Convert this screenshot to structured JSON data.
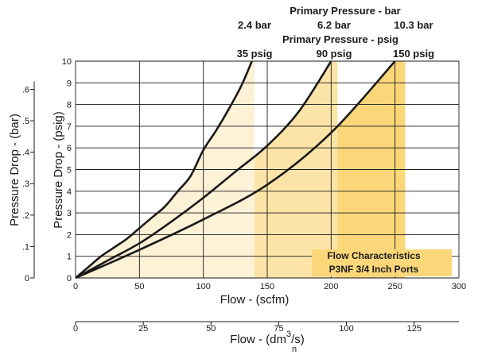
{
  "chart_data": {
    "type": "line",
    "x_unit_primary": "scfm",
    "xlim": [
      0,
      300
    ],
    "ylim": [
      0,
      10
    ],
    "x_ticks": [
      0,
      50,
      100,
      150,
      200,
      250,
      300
    ],
    "y_ticks": [
      0,
      1,
      2,
      3,
      4,
      5,
      6,
      7,
      8,
      9,
      10
    ],
    "grid": true,
    "xlabel": "Flow - (scfm)",
    "ylabel": "Pressure Drop - (psig)",
    "ylabel_bar": "Pressure Drop - (bar)",
    "bar_ticks": [
      {
        "label": "0",
        "psig": 0
      },
      {
        "label": ".1",
        "psig": 1.45
      },
      {
        "label": ".2",
        "psig": 2.9
      },
      {
        "label": ".3",
        "psig": 4.35
      },
      {
        "label": ".4",
        "psig": 5.8
      },
      {
        "label": ".5",
        "psig": 7.25
      },
      {
        "label": ".6",
        "psig": 8.7
      }
    ],
    "secondary_x": {
      "label_main": "Flow - (dm",
      "label_sup": "3",
      "label_sub": "n",
      "label_end": "/s)",
      "ticks": [
        {
          "label": "0",
          "scfm": 0
        },
        {
          "label": "25",
          "scfm": 53
        },
        {
          "label": "50",
          "scfm": 106
        },
        {
          "label": "75",
          "scfm": 159
        },
        {
          "label": "100",
          "scfm": 212
        },
        {
          "label": "125",
          "scfm": 265
        }
      ]
    },
    "header_bar_title": "Primary Pressure - bar",
    "header_psig_title": "Primary Pressure - psig",
    "series": [
      {
        "bar_label": "2.4 bar",
        "psig_label": "35 psig",
        "fill_to": 140,
        "x": [
          0,
          10,
          20,
          30,
          40,
          50,
          60,
          70,
          80,
          90,
          100,
          110,
          120,
          130,
          138
        ],
        "y": [
          0,
          0.5,
          1.0,
          1.4,
          1.8,
          2.3,
          2.8,
          3.3,
          4.0,
          4.7,
          5.9,
          6.8,
          7.8,
          8.9,
          10
        ]
      },
      {
        "bar_label": "6.2 bar",
        "psig_label": "90 psig",
        "fill_to": 205,
        "x": [
          0,
          25,
          50,
          75,
          100,
          125,
          150,
          175,
          200
        ],
        "y": [
          0,
          0.8,
          1.6,
          2.6,
          3.7,
          4.9,
          6.1,
          7.7,
          10
        ]
      },
      {
        "bar_label": "10.3 bar",
        "psig_label": "150 psig",
        "fill_to": 258,
        "x": [
          0,
          50,
          100,
          150,
          200,
          250
        ],
        "y": [
          0,
          1.3,
          2.7,
          4.3,
          6.7,
          10
        ]
      }
    ],
    "annotation": {
      "line1": "Flow Characteristics",
      "line2": "P3NF 3/4 Inch Ports"
    },
    "colors": {
      "fill_light": "#fdf1d6",
      "fill_mid": "#fce4a8",
      "fill_dark": "#fbd77a",
      "curve": "#1a1a1a",
      "grid": "#1a1a1a"
    }
  }
}
